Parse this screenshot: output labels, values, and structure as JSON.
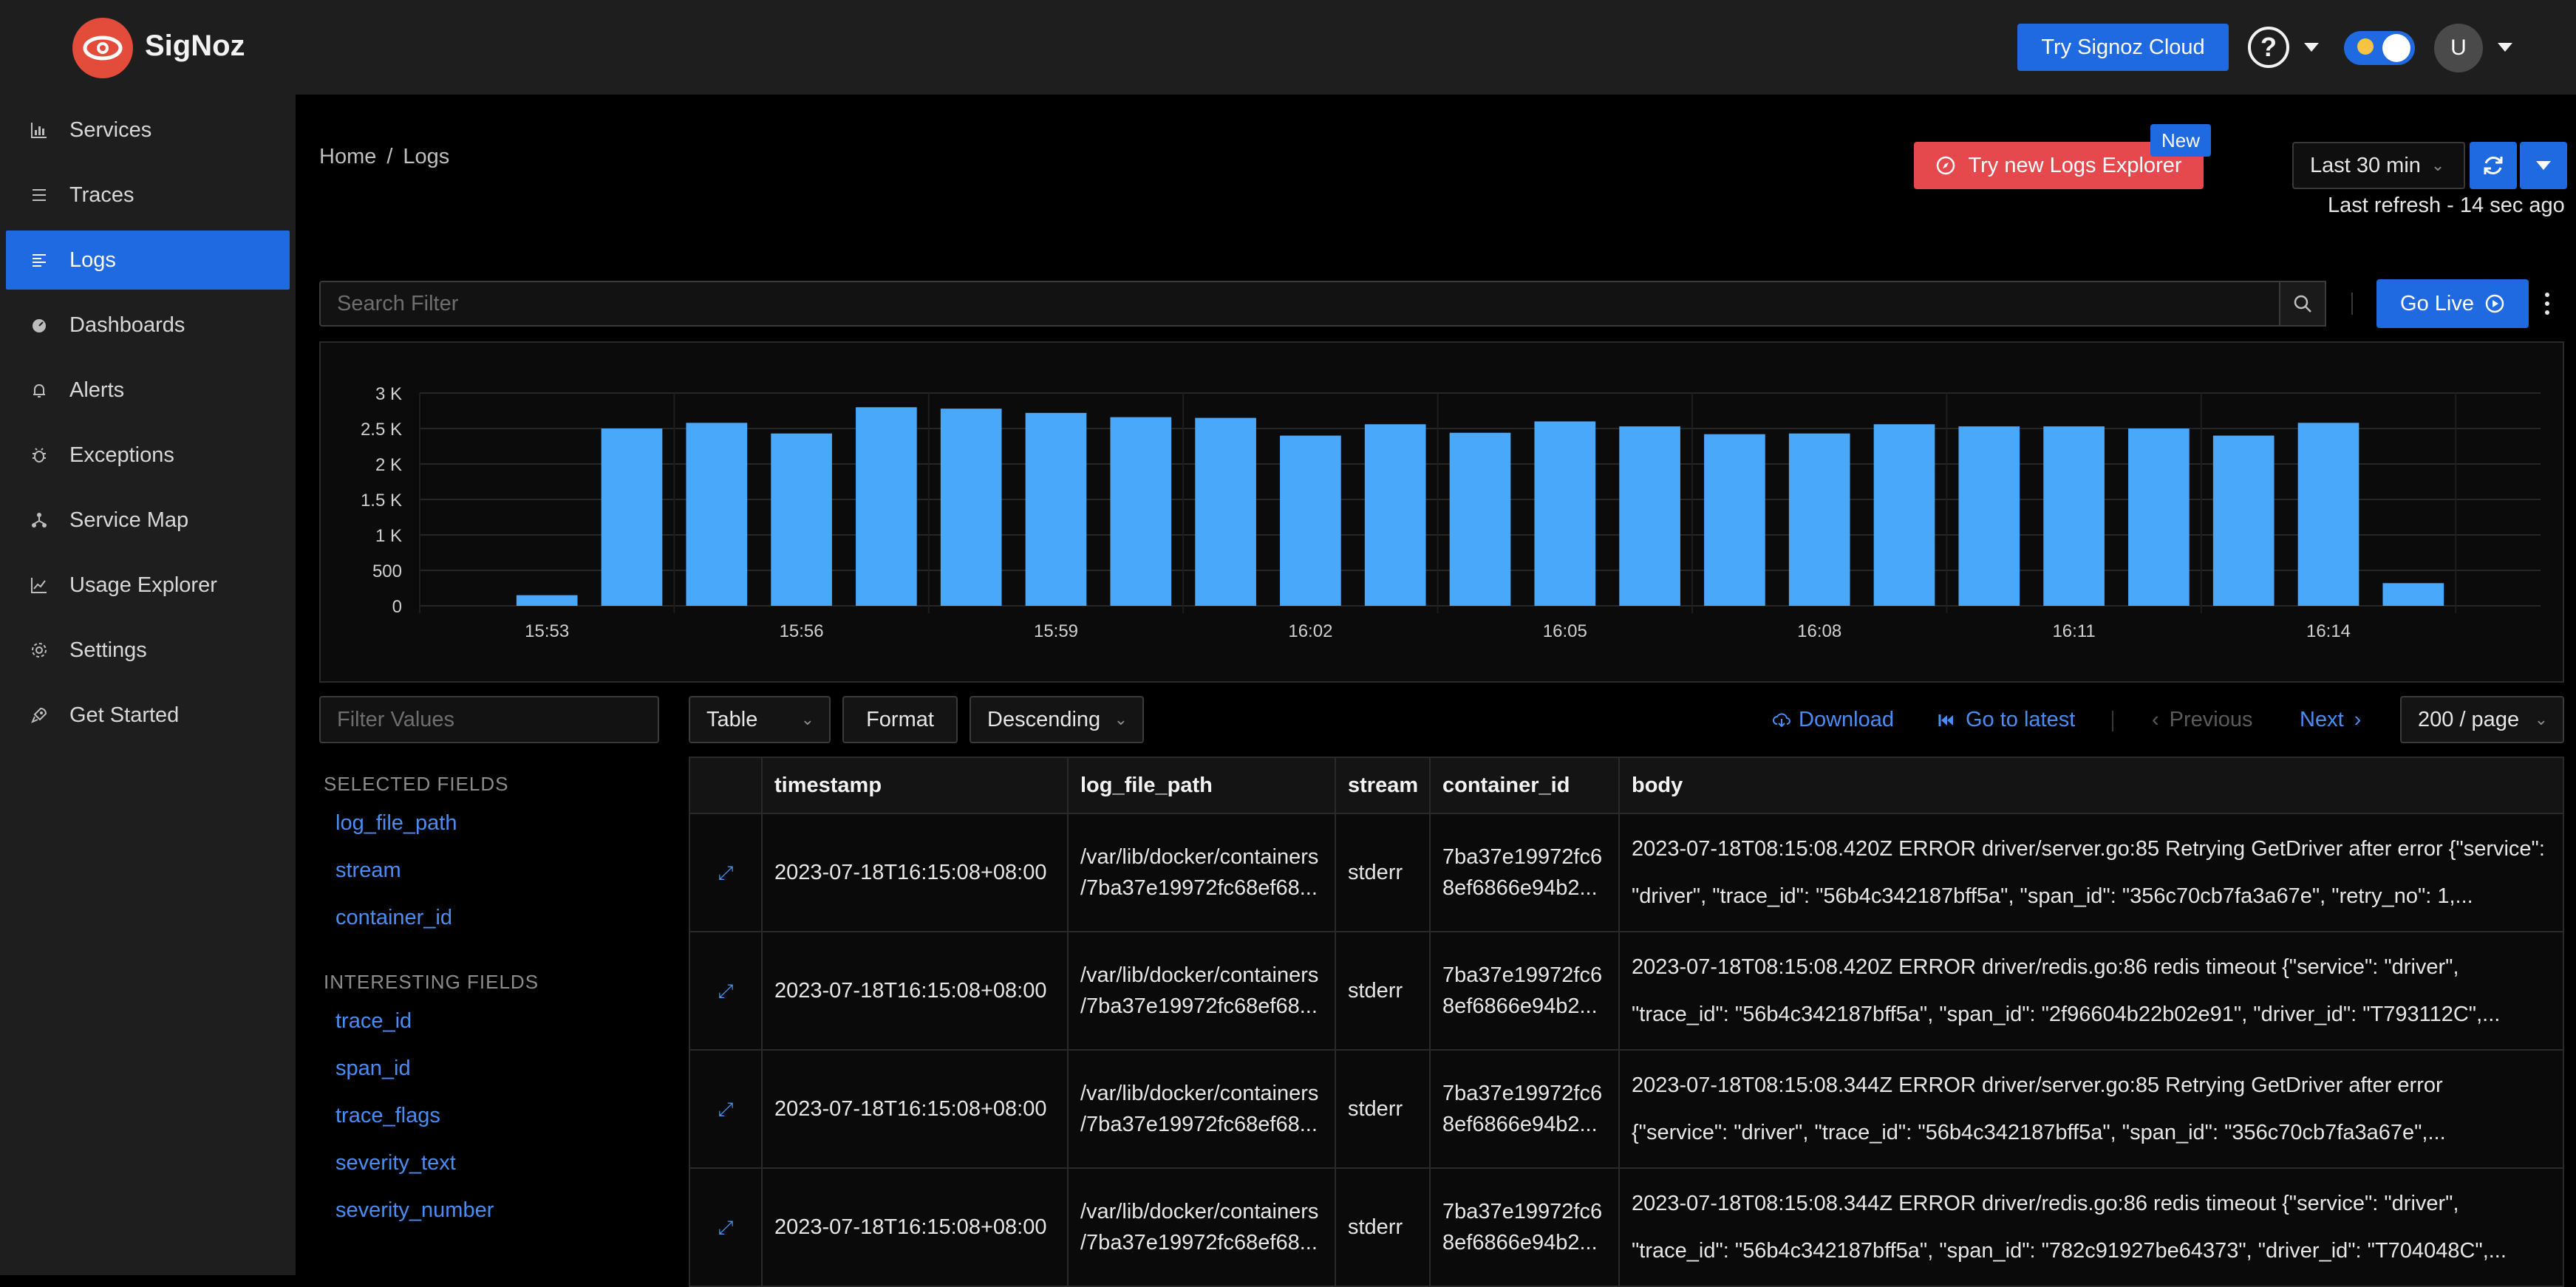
{
  "app": {
    "brand": "SigNoz",
    "accent": "#1f6ae0",
    "danger": "#e5484d"
  },
  "topbar": {
    "try_cloud": "Try Signoz Cloud",
    "help_icon": "?",
    "avatar_initial": "U",
    "theme_toggle": "dark-mode-on"
  },
  "sidebar": {
    "items": [
      {
        "label": "Services",
        "icon": "bar-chart-icon"
      },
      {
        "label": "Traces",
        "icon": "list-icon"
      },
      {
        "label": "Logs",
        "icon": "logs-icon",
        "active": true
      },
      {
        "label": "Dashboards",
        "icon": "dashboard-icon"
      },
      {
        "label": "Alerts",
        "icon": "bell-icon"
      },
      {
        "label": "Exceptions",
        "icon": "bug-icon"
      },
      {
        "label": "Service Map",
        "icon": "network-icon"
      },
      {
        "label": "Usage Explorer",
        "icon": "line-chart-icon"
      },
      {
        "label": "Settings",
        "icon": "gear-icon"
      },
      {
        "label": "Get Started",
        "icon": "rocket-icon"
      }
    ]
  },
  "header": {
    "breadcrumb": [
      "Home",
      "Logs"
    ],
    "breadcrumb_sep": "/",
    "new_explorer": "Try new Logs Explorer",
    "new_badge": "New",
    "time_range": "Last 30 min",
    "last_refresh": "Last refresh - 14 sec ago"
  },
  "search": {
    "placeholder": "Search Filter",
    "go_live": "Go Live"
  },
  "chart_data": {
    "type": "bar",
    "categories": [
      "15:52",
      "15:53",
      "15:54",
      "15:55",
      "15:56",
      "15:57",
      "15:58",
      "15:59",
      "16:00",
      "16:01",
      "16:02",
      "16:03",
      "16:04",
      "16:05",
      "16:06",
      "16:07",
      "16:08",
      "16:09",
      "16:10",
      "16:11",
      "16:12",
      "16:13",
      "16:14",
      "16:15",
      "16:16"
    ],
    "values": [
      0,
      150,
      2500,
      2580,
      2430,
      2800,
      2780,
      2720,
      2660,
      2650,
      2400,
      2560,
      2440,
      2600,
      2530,
      2420,
      2430,
      2560,
      2530,
      2530,
      2500,
      2400,
      2580,
      320,
      0
    ],
    "xticks": [
      "15:53",
      "15:56",
      "15:59",
      "16:02",
      "16:05",
      "16:08",
      "16:11",
      "16:14"
    ],
    "yticks": [
      "0",
      "500",
      "1 K",
      "1.5 K",
      "2 K",
      "2.5 K",
      "3 K"
    ],
    "ylim": [
      0,
      3000
    ],
    "bar_color": "#49a8fa",
    "grid": true
  },
  "controls": {
    "filter_placeholder": "Filter Values",
    "view": "Table",
    "format": "Format",
    "order": "Descending",
    "download": "Download",
    "go_latest": "Go to latest",
    "previous": "Previous",
    "next": "Next",
    "page_size": "200 / page"
  },
  "fields": {
    "selected_heading": "SELECTED FIELDS",
    "selected": [
      "log_file_path",
      "stream",
      "container_id"
    ],
    "interesting_heading": "INTERESTING FIELDS",
    "interesting": [
      "trace_id",
      "span_id",
      "trace_flags",
      "severity_text",
      "severity_number"
    ]
  },
  "table": {
    "columns": [
      "timestamp",
      "log_file_path",
      "stream",
      "container_id",
      "body"
    ],
    "rows": [
      {
        "timestamp": "2023-07-18T16:15:08+08:00",
        "path1": "/var/lib/docker/containers",
        "path2": "/7ba37e19972fc68ef68...",
        "stream": "stderr",
        "cid1": "7ba37e19972fc6",
        "cid2": "8ef6866e94b2...",
        "body1": "2023-07-18T08:15:08.420Z ERROR driver/server.go:85 Retrying GetDriver after error {\"service\":",
        "body2": "\"driver\", \"trace_id\": \"56b4c342187bff5a\", \"span_id\": \"356c70cb7fa3a67e\", \"retry_no\": 1,..."
      },
      {
        "timestamp": "2023-07-18T16:15:08+08:00",
        "path1": "/var/lib/docker/containers",
        "path2": "/7ba37e19972fc68ef68...",
        "stream": "stderr",
        "cid1": "7ba37e19972fc6",
        "cid2": "8ef6866e94b2...",
        "body1": "2023-07-18T08:15:08.420Z ERROR driver/redis.go:86 redis timeout {\"service\": \"driver\",",
        "body2": "\"trace_id\": \"56b4c342187bff5a\", \"span_id\": \"2f96604b22b02e91\", \"driver_id\": \"T793112C\",..."
      },
      {
        "timestamp": "2023-07-18T16:15:08+08:00",
        "path1": "/var/lib/docker/containers",
        "path2": "/7ba37e19972fc68ef68...",
        "stream": "stderr",
        "cid1": "7ba37e19972fc6",
        "cid2": "8ef6866e94b2...",
        "body1": "2023-07-18T08:15:08.344Z ERROR driver/server.go:85 Retrying GetDriver after error",
        "body2": "{\"service\": \"driver\", \"trace_id\": \"56b4c342187bff5a\", \"span_id\": \"356c70cb7fa3a67e\",..."
      },
      {
        "timestamp": "2023-07-18T16:15:08+08:00",
        "path1": "/var/lib/docker/containers",
        "path2": "/7ba37e19972fc68ef68...",
        "stream": "stderr",
        "cid1": "7ba37e19972fc6",
        "cid2": "8ef6866e94b2...",
        "body1": "2023-07-18T08:15:08.344Z ERROR driver/redis.go:86 redis timeout {\"service\": \"driver\",",
        "body2": "\"trace_id\": \"56b4c342187bff5a\", \"span_id\": \"782c91927be64373\", \"driver_id\": \"T704048C\",..."
      }
    ]
  }
}
